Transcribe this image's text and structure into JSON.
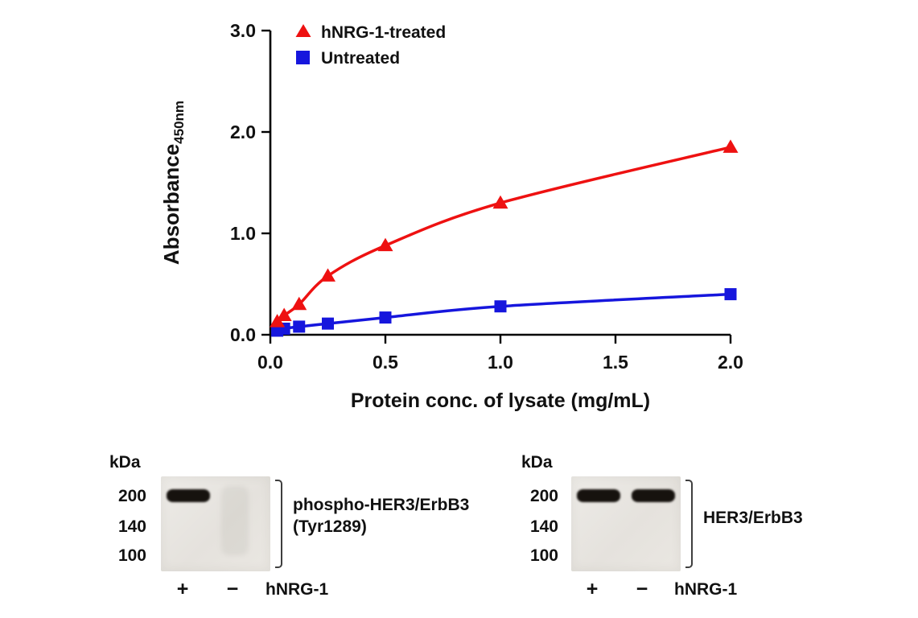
{
  "chart_data": {
    "type": "line",
    "title": "",
    "xlabel": "Protein conc. of lysate (mg/mL)",
    "ylabel": "Absorbance",
    "ylabel_sub": "450nm",
    "xlim": [
      0,
      2.0
    ],
    "ylim": [
      0,
      3.0
    ],
    "xticks": [
      "0.0",
      "0.5",
      "1.0",
      "1.5",
      "2.0"
    ],
    "yticks": [
      "0.0",
      "1.0",
      "2.0",
      "3.0"
    ],
    "grid": false,
    "legend_position": "top-left-inside",
    "series": [
      {
        "name": "hNRG-1-treated",
        "marker": "triangle",
        "color": "#ee1111",
        "x": [
          0.03,
          0.06,
          0.125,
          0.25,
          0.5,
          1.0,
          2.0
        ],
        "y": [
          0.13,
          0.19,
          0.3,
          0.58,
          0.88,
          1.3,
          1.85
        ]
      },
      {
        "name": "Untreated",
        "marker": "square",
        "color": "#1616dd",
        "x": [
          0.03,
          0.06,
          0.125,
          0.25,
          0.5,
          1.0,
          2.0
        ],
        "y": [
          0.04,
          0.06,
          0.08,
          0.11,
          0.17,
          0.28,
          0.4
        ]
      }
    ]
  },
  "blots": [
    {
      "kda_label": "kDa",
      "markers": [
        "200",
        "140",
        "100"
      ],
      "label_line1": "phospho-HER3/ErbB3",
      "label_line2": "(Tyr1289)",
      "lane_signs": [
        "+",
        "−"
      ],
      "treatment_label": "hNRG-1",
      "bands": [
        {
          "lane": 0,
          "intensity": "strong"
        },
        {
          "lane": 1,
          "intensity": "faint"
        }
      ]
    },
    {
      "kda_label": "kDa",
      "markers": [
        "200",
        "140",
        "100"
      ],
      "label_line1": "HER3/ErbB3",
      "label_line2": "",
      "lane_signs": [
        "+",
        "−"
      ],
      "treatment_label": "hNRG-1",
      "bands": [
        {
          "lane": 0,
          "intensity": "strong"
        },
        {
          "lane": 1,
          "intensity": "strong"
        }
      ]
    }
  ]
}
